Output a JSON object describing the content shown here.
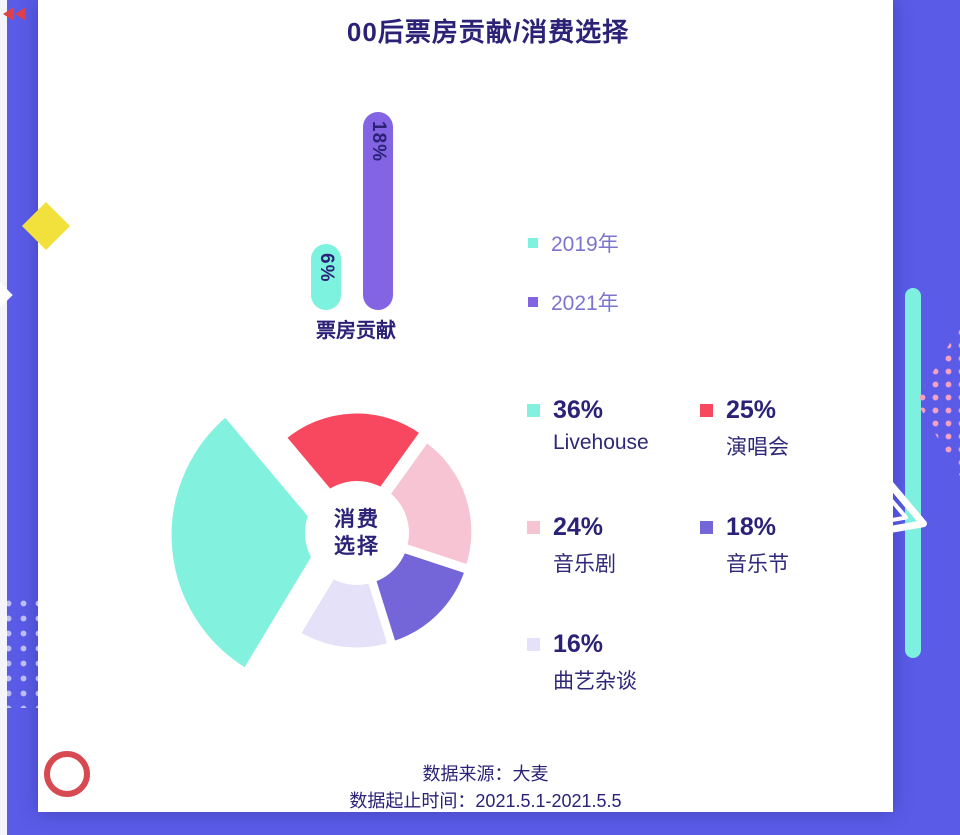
{
  "page": {
    "title": "00后票房贡献/消费选择",
    "footer": {
      "source": "数据来源：大麦",
      "period": "数据起止时间：2021.5.1-2021.5.5"
    },
    "colors": {
      "background": "#5a5ce8",
      "card": "#ffffff",
      "title_text": "#2b2277",
      "accent_yellow": "#f2e13c",
      "accent_red_ring": "#d84a52",
      "accent_cyan_strip": "#7ef0df",
      "accent_pink_dots": "#f6a0c2"
    }
  },
  "chart_data": [
    {
      "type": "bar",
      "title": "票房贡献",
      "categories": [
        "2019年",
        "2021年"
      ],
      "values": [
        6,
        18
      ],
      "value_labels": [
        "6%",
        "18%"
      ],
      "unit": "%",
      "ylim": [
        0,
        18
      ],
      "colors": [
        "#7df2df",
        "#8365e3"
      ],
      "legend_position": "right",
      "legend": [
        {
          "label": "2019年",
          "color": "#7df2df"
        },
        {
          "label": "2021年",
          "color": "#8365e3"
        }
      ]
    },
    {
      "type": "pie",
      "title": "消费选择",
      "center_label_line1": "消费",
      "center_label_line2": "选择",
      "legend_position": "right",
      "slices": [
        {
          "label": "Livehouse",
          "value": 36,
          "pct": "36%",
          "color": "#82f2de"
        },
        {
          "label": "演唱会",
          "value": 25,
          "pct": "25%",
          "color": "#f8485f"
        },
        {
          "label": "音乐剧",
          "value": 24,
          "pct": "24%",
          "color": "#f7c4d4"
        },
        {
          "label": "音乐节",
          "value": 18,
          "pct": "18%",
          "color": "#7465d8"
        },
        {
          "label": "曲艺杂谈",
          "value": 16,
          "pct": "16%",
          "color": "#e4e1f8"
        }
      ]
    }
  ]
}
